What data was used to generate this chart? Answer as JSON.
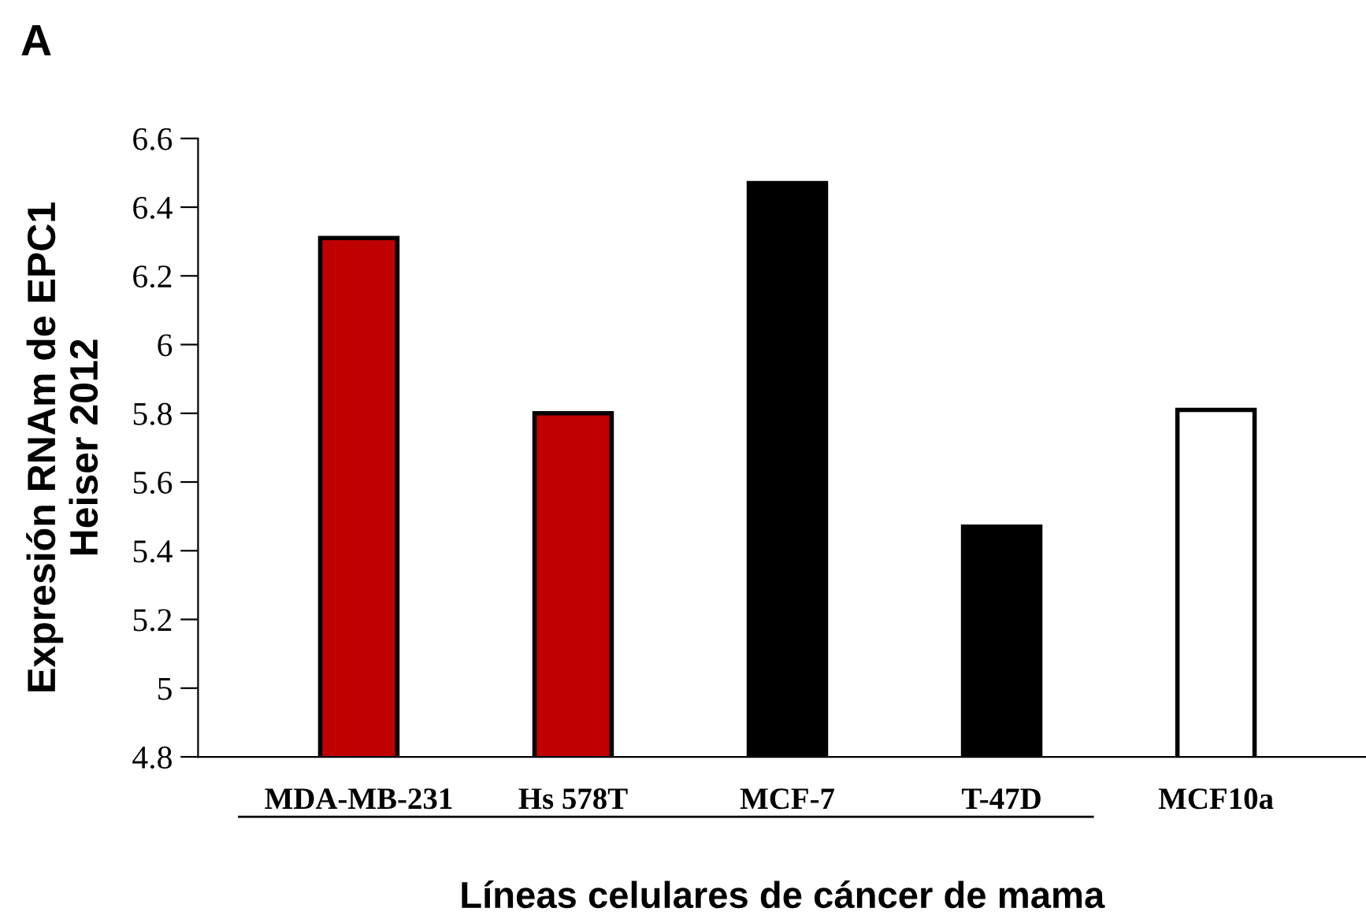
{
  "chart_data": {
    "type": "bar",
    "categories": [
      "MDA-MB-231",
      "Hs 578T",
      "MCF-7",
      "T-47D",
      "MCF10a"
    ],
    "values": [
      6.31,
      5.8,
      6.47,
      5.47,
      5.81
    ],
    "colors": [
      "#c00000",
      "#c00000",
      "#000000",
      "#000000",
      "#ffffff"
    ],
    "ylim": [
      4.8,
      6.6
    ],
    "yticks": [
      4.8,
      5,
      5.2,
      5.4,
      5.6,
      5.8,
      6,
      6.2,
      6.4,
      6.6
    ],
    "ylabel": "Expresión RNAm de EPC1\nHeiser 2012",
    "xlabel": "Líneas celulares de cáncer de mama",
    "annotations": [
      "A"
    ],
    "grid": false,
    "legend": false
  }
}
